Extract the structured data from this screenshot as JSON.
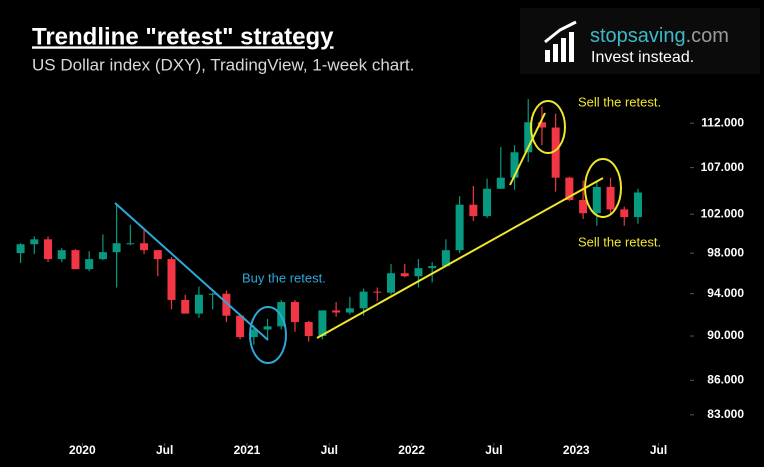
{
  "chart_data": {
    "type": "candlestick",
    "title": "Trendline \"retest\" strategy",
    "subtitle": "US Dollar index (DXY), TradingView, 1-week chart.",
    "brand": {
      "name": "stopsaving",
      "domain": ".com",
      "tagline": "Invest instead."
    },
    "annotations": [
      "Buy the retest.",
      "Sell the retest.",
      "Sell the retest."
    ],
    "log_scale": true,
    "up_color": "#089981",
    "down_color": "#f23645",
    "x": [
      "2019-08",
      "2019-09",
      "2019-10",
      "2019-11",
      "2019-12",
      "2020-01",
      "2020-02",
      "2020-03",
      "2020-04",
      "2020-05",
      "2020-06",
      "2020-07",
      "2020-08",
      "2020-09",
      "2020-10",
      "2020-11",
      "2020-12",
      "2021-01",
      "2021-02",
      "2021-03",
      "2021-04",
      "2021-05",
      "2021-06",
      "2021-07",
      "2021-08",
      "2021-09",
      "2021-10",
      "2021-11",
      "2021-12",
      "2022-01",
      "2022-02",
      "2022-03",
      "2022-04",
      "2022-05",
      "2022-06",
      "2022-07",
      "2022-08",
      "2022-09",
      "2022-10",
      "2022-11",
      "2022-12",
      "2023-01",
      "2023-02",
      "2023-03",
      "2023-04",
      "2023-05"
    ],
    "open": [
      98.0,
      98.9,
      99.4,
      97.4,
      98.3,
      96.4,
      97.4,
      98.1,
      99.0,
      99.0,
      98.3,
      97.4,
      93.4,
      92.1,
      93.9,
      94.0,
      91.9,
      89.9,
      90.6,
      90.9,
      93.2,
      91.3,
      90.0,
      92.4,
      92.2,
      92.6,
      94.2,
      94.1,
      96.0,
      95.7,
      96.5,
      96.7,
      98.3,
      103.0,
      101.8,
      104.7,
      105.9,
      108.7,
      112.1,
      111.5,
      105.9,
      103.5,
      102.1,
      104.9,
      102.5,
      101.7
    ],
    "high": [
      99.0,
      99.7,
      99.7,
      98.5,
      98.4,
      98.2,
      99.9,
      103.0,
      100.9,
      100.4,
      98.3,
      97.6,
      93.9,
      94.7,
      94.1,
      94.3,
      92.0,
      91.0,
      91.6,
      93.4,
      93.4,
      91.4,
      92.4,
      93.2,
      93.7,
      94.5,
      94.6,
      96.9,
      96.9,
      97.4,
      97.1,
      99.4,
      103.9,
      105.0,
      105.8,
      109.3,
      109.5,
      114.8,
      113.9,
      113.1,
      106.0,
      105.6,
      105.4,
      105.9,
      102.8,
      104.7
    ],
    "low": [
      97.0,
      97.9,
      97.1,
      97.1,
      96.4,
      96.2,
      97.3,
      94.6,
      98.8,
      97.9,
      95.7,
      92.5,
      92.1,
      91.7,
      92.5,
      91.3,
      89.7,
      89.2,
      89.7,
      90.6,
      90.4,
      89.5,
      89.7,
      91.8,
      92.0,
      91.9,
      93.3,
      93.9,
      95.6,
      94.6,
      95.1,
      96.7,
      98.0,
      101.3,
      101.6,
      104.7,
      104.6,
      107.6,
      109.5,
      104.4,
      103.4,
      101.5,
      100.8,
      101.9,
      100.8,
      101.0
    ],
    "close": [
      98.9,
      99.4,
      97.4,
      98.3,
      96.4,
      97.4,
      98.1,
      99.0,
      99.0,
      98.3,
      97.4,
      93.4,
      92.1,
      93.9,
      94.0,
      91.9,
      89.9,
      90.6,
      90.9,
      93.2,
      91.3,
      90.0,
      92.4,
      92.2,
      92.6,
      94.2,
      94.1,
      96.0,
      95.7,
      96.5,
      96.7,
      98.3,
      103.0,
      101.8,
      104.7,
      105.9,
      108.7,
      112.1,
      111.5,
      105.9,
      103.5,
      102.1,
      104.9,
      102.5,
      101.7,
      104.3
    ],
    "xlim": [
      "2019-07",
      "2023-09"
    ],
    "xticks": [
      {
        "value": "2020-01",
        "label": "2020"
      },
      {
        "value": "2020-07",
        "label": "Jul"
      },
      {
        "value": "2021-01",
        "label": "2021"
      },
      {
        "value": "2021-07",
        "label": "Jul"
      },
      {
        "value": "2022-01",
        "label": "2022"
      },
      {
        "value": "2022-07",
        "label": "Jul"
      },
      {
        "value": "2023-01",
        "label": "2023"
      },
      {
        "value": "2023-07",
        "label": "Jul"
      }
    ],
    "ylim": [
      80.8,
      116
    ],
    "yticks": [
      {
        "value": 83,
        "label": "83.000"
      },
      {
        "value": 86,
        "label": "86.000"
      },
      {
        "value": 90,
        "label": "90.000"
      },
      {
        "value": 94,
        "label": "94.000"
      },
      {
        "value": 98,
        "label": "98.000"
      },
      {
        "value": 102,
        "label": "102.000"
      },
      {
        "value": 107,
        "label": "107.000"
      },
      {
        "value": 112,
        "label": "112.000"
      }
    ]
  }
}
